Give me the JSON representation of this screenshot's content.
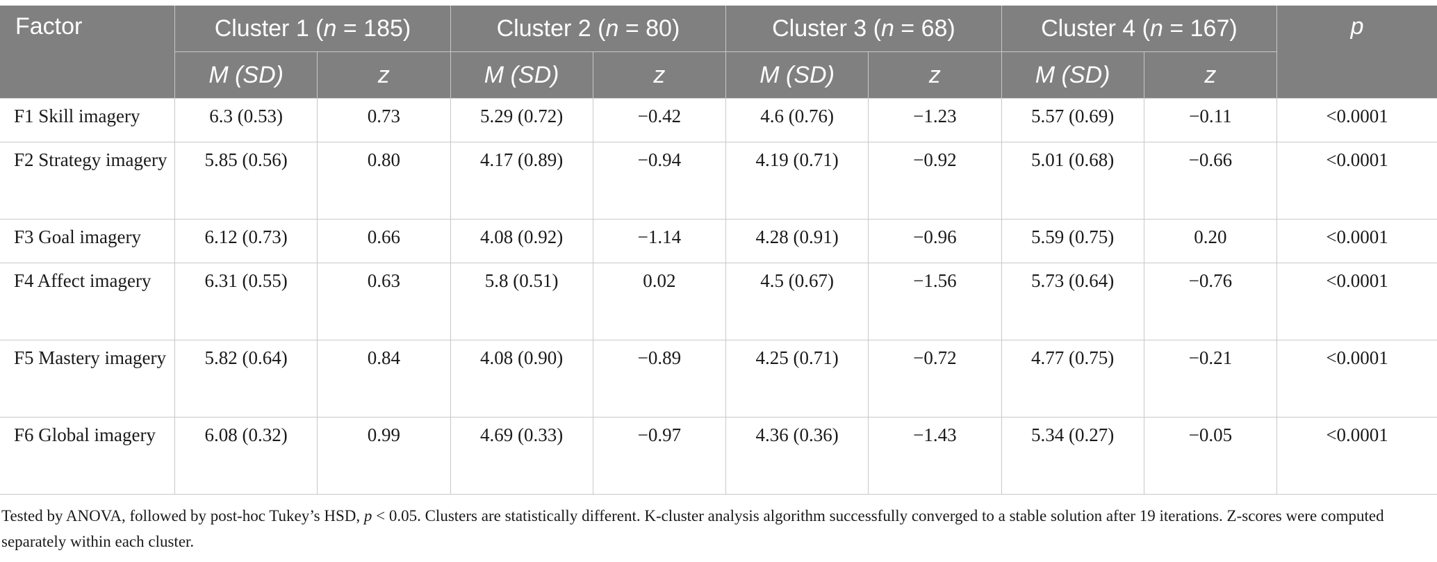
{
  "header": {
    "factor": "Factor",
    "clusters": [
      {
        "label_pre": "Cluster 1 (",
        "n_symbol": "n",
        "label_post": " = 185)"
      },
      {
        "label_pre": "Cluster 2 (",
        "n_symbol": "n",
        "label_post": " = 80)"
      },
      {
        "label_pre": "Cluster 3 (",
        "n_symbol": "n",
        "label_post": " = 68)"
      },
      {
        "label_pre": "Cluster 4 (",
        "n_symbol": "n",
        "label_post": " = 167)"
      }
    ],
    "p": "p",
    "m_sd": "M (SD)",
    "z": "z"
  },
  "rows": [
    {
      "factor": "F1 Skill imagery",
      "c1m": "6.3 (0.53)",
      "c1z": "0.73",
      "c2m": "5.29 (0.72)",
      "c2z": "−0.42",
      "c3m": "4.6 (0.76)",
      "c3z": "−1.23",
      "c4m": "5.57 (0.69)",
      "c4z": "−0.11",
      "p": "<0.0001"
    },
    {
      "factor": "F2 Strategy imagery",
      "c1m": "5.85 (0.56)",
      "c1z": "0.80",
      "c2m": "4.17 (0.89)",
      "c2z": "−0.94",
      "c3m": "4.19 (0.71)",
      "c3z": "−0.92",
      "c4m": "5.01 (0.68)",
      "c4z": "−0.66",
      "p": "<0.0001"
    },
    {
      "factor": "F3 Goal imagery",
      "c1m": "6.12 (0.73)",
      "c1z": "0.66",
      "c2m": "4.08 (0.92)",
      "c2z": "−1.14",
      "c3m": "4.28 (0.91)",
      "c3z": "−0.96",
      "c4m": "5.59 (0.75)",
      "c4z": "0.20",
      "p": "<0.0001"
    },
    {
      "factor": "F4 Affect imagery",
      "c1m": "6.31 (0.55)",
      "c1z": "0.63",
      "c2m": "5.8 (0.51)",
      "c2z": "0.02",
      "c3m": "4.5 (0.67)",
      "c3z": "−1.56",
      "c4m": "5.73 (0.64)",
      "c4z": "−0.76",
      "p": "<0.0001"
    },
    {
      "factor": "F5 Mastery imagery",
      "c1m": "5.82 (0.64)",
      "c1z": "0.84",
      "c2m": "4.08 (0.90)",
      "c2z": "−0.89",
      "c3m": "4.25 (0.71)",
      "c3z": "−0.72",
      "c4m": "4.77 (0.75)",
      "c4z": "−0.21",
      "p": "<0.0001"
    },
    {
      "factor": "F6 Global imagery",
      "c1m": "6.08 (0.32)",
      "c1z": "0.99",
      "c2m": "4.69 (0.33)",
      "c2z": "−0.97",
      "c3m": "4.36 (0.36)",
      "c3z": "−1.43",
      "c4m": "5.34 (0.27)",
      "c4z": "−0.05",
      "p": "<0.0001"
    }
  ],
  "note": {
    "part1": "Tested by ANOVA, followed by post-hoc Tukey’s HSD, ",
    "p_symbol": "p",
    "part2": " < 0.05. Clusters are statistically different. K-cluster analysis algorithm successfully converged to a stable solution after 19 iterations. Z-scores were computed separately within each cluster."
  },
  "colors": {
    "header_bg": "#808080",
    "header_text": "#ffffff",
    "grid": "#c8c8c8"
  }
}
